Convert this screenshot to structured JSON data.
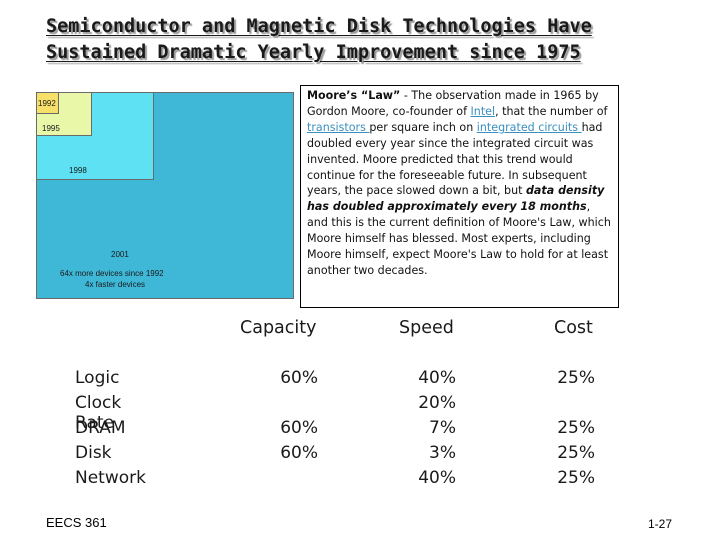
{
  "title": {
    "line1": "Semiconductor and Magnetic Disk Technologies Have",
    "line2": "Sustained Dramatic Yearly Improvement since 1975"
  },
  "diagram": {
    "labels": {
      "y1992": "1992",
      "y1995": "1995",
      "y1998": "1998",
      "y2001": "2001",
      "devices": "64x more devices since 1992",
      "speed": "4x faster devices"
    },
    "colors": {
      "y1992": "#f6e06a",
      "y1995": "#e8f7a8",
      "y1998": "#5de1f3",
      "y2001": "#3fb8d8"
    }
  },
  "moore": {
    "lead": "Moore’s “Law”",
    "p1": " - The observation made in 1965 by Gordon Moore, co-founder of ",
    "link_intel": "Intel",
    "p2": ", that the number of ",
    "link_transistors": "transistors ",
    "p3": "per square inch on ",
    "link_ic": "integrated circuits ",
    "p4": "had doubled every year since the integrated circuit was invented.  Moore predicted that this trend would continue for the foreseeable future.  In subsequent years, the pace slowed down a bit, but ",
    "emph": "data density has doubled approximately every 18 months",
    "p5": ", and this is the current definition of Moore's Law, which Moore himself has blessed. Most experts, including Moore himself, expect Moore's Law to hold for at least another two decades."
  },
  "table": {
    "headers": {
      "capacity": "Capacity",
      "speed": "Speed",
      "cost": "Cost"
    },
    "rows": [
      {
        "label": "Logic",
        "capacity": "60%",
        "speed": "40%",
        "cost": "25%"
      },
      {
        "label": "Clock Rate",
        "capacity": "",
        "speed": "20%",
        "cost": ""
      },
      {
        "label": "DRAM",
        "capacity": "60%",
        "speed": "7%",
        "cost": "25%"
      },
      {
        "label": "Disk",
        "capacity": "60%",
        "speed": "3%",
        "cost": "25%"
      },
      {
        "label": "Network",
        "capacity": "",
        "speed": "40%",
        "cost": "25%"
      }
    ]
  },
  "footer": {
    "course": "EECS 361",
    "page": "1-27"
  }
}
